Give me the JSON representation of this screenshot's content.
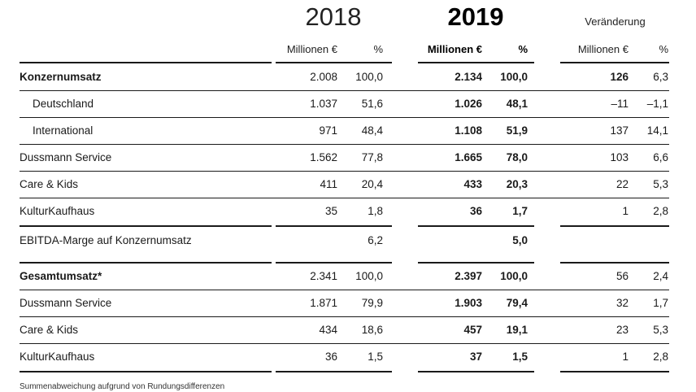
{
  "header": {
    "year_2018": "2018",
    "year_2019": "2019",
    "change_label": "Veränderung",
    "col_mio_2018": "Millionen €",
    "col_pct_2018": "%",
    "col_mio_2019": "Millionen €",
    "col_pct_2019": "%",
    "col_mio_change": "Millionen €",
    "col_pct_change": "%"
  },
  "rows": [
    {
      "label": "Konzernumsatz",
      "v2018": "2.008",
      "p2018": "100,0",
      "v2019": "2.134",
      "p2019": "100,0",
      "vchg": "126",
      "pchg": "6,3"
    },
    {
      "label": "Deutschland",
      "v2018": "1.037",
      "p2018": "51,6",
      "v2019": "1.026",
      "p2019": "48,1",
      "vchg": "–11",
      "pchg": "–1,1"
    },
    {
      "label": "International",
      "v2018": "971",
      "p2018": "48,4",
      "v2019": "1.108",
      "p2019": "51,9",
      "vchg": "137",
      "pchg": "14,1"
    },
    {
      "label": "Dussmann Service",
      "v2018": "1.562",
      "p2018": "77,8",
      "v2019": "1.665",
      "p2019": "78,0",
      "vchg": "103",
      "pchg": "6,6"
    },
    {
      "label": "Care & Kids",
      "v2018": "411",
      "p2018": "20,4",
      "v2019": "433",
      "p2019": "20,3",
      "vchg": "22",
      "pchg": "5,3"
    },
    {
      "label": "KulturKaufhaus",
      "v2018": "35",
      "p2018": "1,8",
      "v2019": "36",
      "p2019": "1,7",
      "vchg": "1",
      "pchg": "2,8"
    },
    {
      "label": "EBITDA-Marge auf Konzernumsatz",
      "v2018": "",
      "p2018": "6,2",
      "v2019": "",
      "p2019": "5,0",
      "vchg": "",
      "pchg": ""
    },
    {
      "label": "Gesamtumsatz*",
      "v2018": "2.341",
      "p2018": "100,0",
      "v2019": "2.397",
      "p2019": "100,0",
      "vchg": "56",
      "pchg": "2,4"
    },
    {
      "label": "Dussmann Service",
      "v2018": "1.871",
      "p2018": "79,9",
      "v2019": "1.903",
      "p2019": "79,4",
      "vchg": "32",
      "pchg": "1,7"
    },
    {
      "label": "Care & Kids",
      "v2018": "434",
      "p2018": "18,6",
      "v2019": "457",
      "p2019": "19,1",
      "vchg": "23",
      "pchg": "5,3"
    },
    {
      "label": "KulturKaufhaus",
      "v2018": "36",
      "p2018": "1,5",
      "v2019": "37",
      "p2019": "1,5",
      "vchg": "1",
      "pchg": "2,8"
    }
  ],
  "footnote": "Summenabweichung aufgrund von Rundungsdifferenzen"
}
